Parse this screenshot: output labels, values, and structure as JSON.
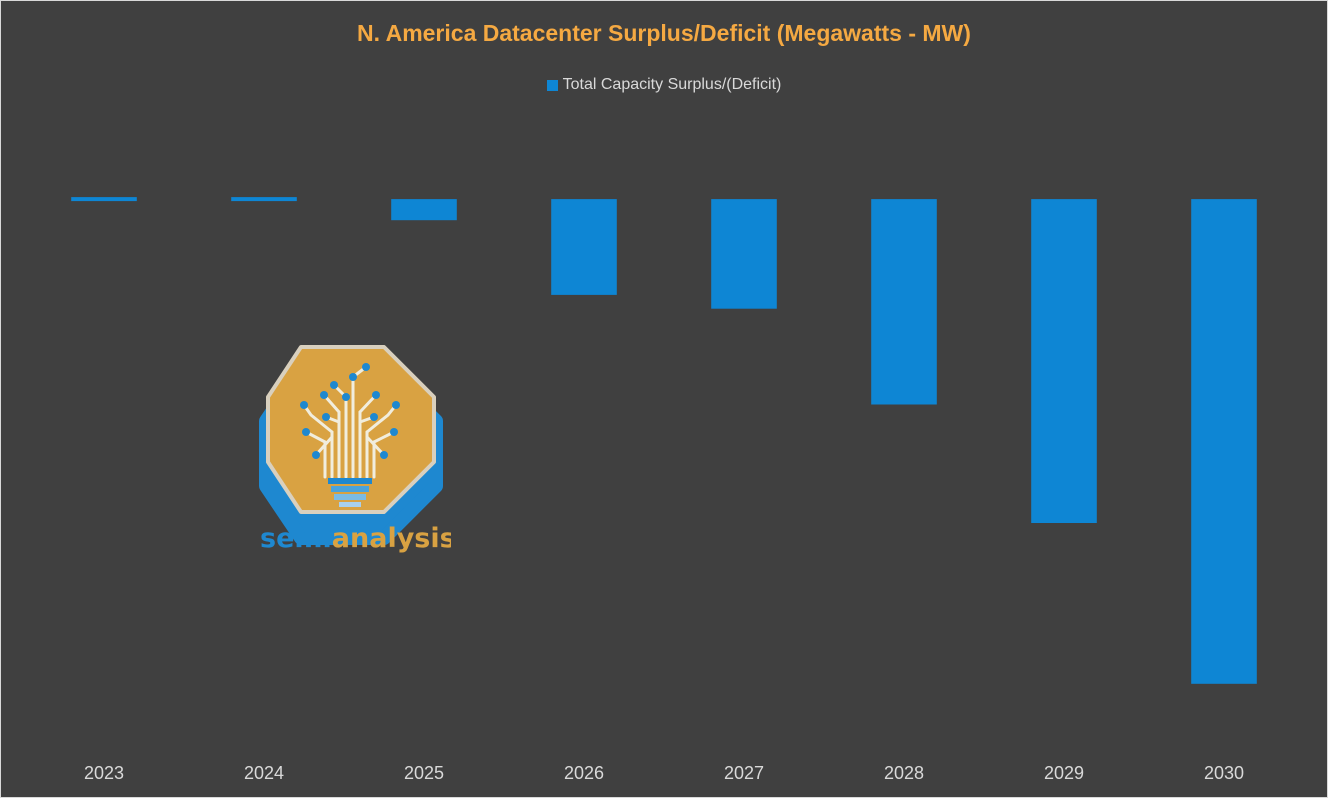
{
  "chart_data": {
    "type": "bar",
    "title": "N. America Datacenter Surplus/Deficit (Megawatts - MW)",
    "categories": [
      "2023",
      "2024",
      "2025",
      "2026",
      "2027",
      "2028",
      "2029",
      "2030"
    ],
    "series": [
      {
        "name": "Total Capacity Surplus/(Deficit)",
        "color": "#0e86d4",
        "values": [
          400,
          0,
          -2600,
          -11800,
          -13500,
          -25300,
          -39900,
          -59700
        ]
      }
    ],
    "ylim": [
      -67000,
      9000
    ],
    "xlabel": "",
    "ylabel": "",
    "grid": false,
    "legend_position": "top-center",
    "title_color": "#f5a942",
    "background_color": "#404040"
  },
  "logo": {
    "text_part1": "semi",
    "text_part2": "analysis",
    "color_blue": "#1e88d0",
    "color_orange": "#d9a242"
  }
}
